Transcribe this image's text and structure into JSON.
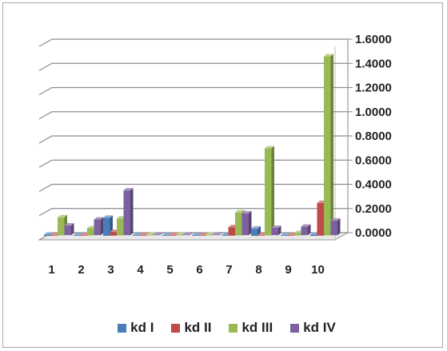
{
  "chart_data": {
    "type": "bar",
    "style": "3d-clustered-column",
    "categories": [
      "1",
      "2",
      "3",
      "4",
      "5",
      "6",
      "7",
      "8",
      "9",
      "10"
    ],
    "series": [
      {
        "name": "kd I",
        "color": "#4a7ebb",
        "values": [
          0.01,
          0.0,
          0.15,
          0.0,
          0.0,
          0.0,
          0.0,
          0.06,
          0.0,
          0.01
        ]
      },
      {
        "name": "kd II",
        "color": "#be4b48",
        "values": [
          0.0,
          0.0,
          0.03,
          0.0,
          0.0,
          0.0,
          0.07,
          0.0,
          0.0,
          0.27
        ]
      },
      {
        "name": "kd III",
        "color": "#98b954",
        "values": [
          0.15,
          0.06,
          0.14,
          0.0,
          0.0,
          0.0,
          0.19,
          0.72,
          0.02,
          1.48
        ]
      },
      {
        "name": "kd IV",
        "color": "#7d60a0",
        "values": [
          0.08,
          0.13,
          0.37,
          0.0,
          0.0,
          0.0,
          0.18,
          0.06,
          0.07,
          0.12
        ]
      }
    ],
    "ylim": [
      0,
      1.6
    ],
    "yticks": [
      "0.0000",
      "0.2000",
      "0.4000",
      "0.6000",
      "0.8000",
      "1.0000",
      "1.2000",
      "1.4000",
      "1.6000"
    ],
    "title": "",
    "xlabel": "",
    "ylabel": "",
    "legend_position": "bottom",
    "gridlines": true
  }
}
